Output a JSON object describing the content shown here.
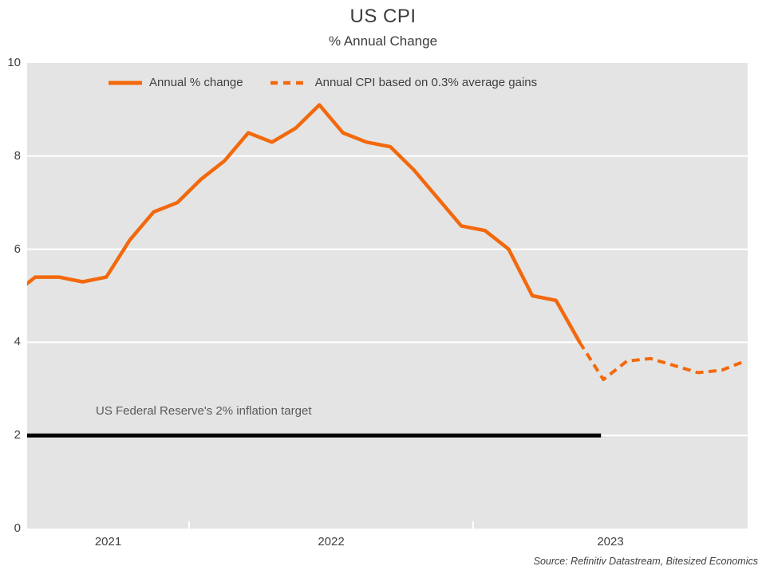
{
  "accent_color": "#F2690D",
  "target_line_color": "#000000",
  "plot_bg_color": "#E4E4E4",
  "gridline_color": "#FFFFFF",
  "chart_data": {
    "type": "line",
    "title": "US CPI",
    "subtitle": "% Annual Change",
    "ylabel": "",
    "xlabel": "",
    "ylim": [
      0,
      10
    ],
    "yticks": [
      0,
      2,
      4,
      6,
      8,
      10
    ],
    "ygrid": [
      2,
      4,
      6,
      8
    ],
    "grid": "horizontal-white-on-gray",
    "legend_position": "top-inside",
    "x_unit": "months",
    "x_epoch_label": "months_since_jan_2022",
    "year_boundary_ticks": [
      0,
      12
    ],
    "x_tick_years": [
      "2021",
      "2022",
      "2023"
    ],
    "series": [
      {
        "name": "Annual % change",
        "style": "solid",
        "color": "#F2690D",
        "start_month_offset": -8,
        "start_label": "May 2021",
        "values": [
          5.0,
          5.4,
          5.4,
          5.3,
          5.4,
          6.2,
          6.8,
          7.0,
          7.5,
          7.9,
          8.5,
          8.3,
          8.6,
          9.1,
          8.5,
          8.3,
          8.2,
          7.7,
          7.1,
          6.5,
          6.4,
          6.0,
          5.0,
          4.9,
          4.0
        ]
      },
      {
        "name": "Annual CPI based on 0.3% average gains",
        "style": "dashed",
        "color": "#F2690D",
        "start_month_offset": 16,
        "start_label": "May 2023",
        "values": [
          4.0,
          3.2,
          3.6,
          3.65,
          3.5,
          3.35,
          3.4,
          3.6
        ]
      }
    ],
    "annotations": {
      "target_line": {
        "value": 2,
        "label": "US Federal Reserve's 2% inflation target",
        "start_month_offset": -8.2,
        "end_month_offset": 16.9
      }
    },
    "source": "Source: Refinitiv Datastream, Bitesized Economics"
  }
}
